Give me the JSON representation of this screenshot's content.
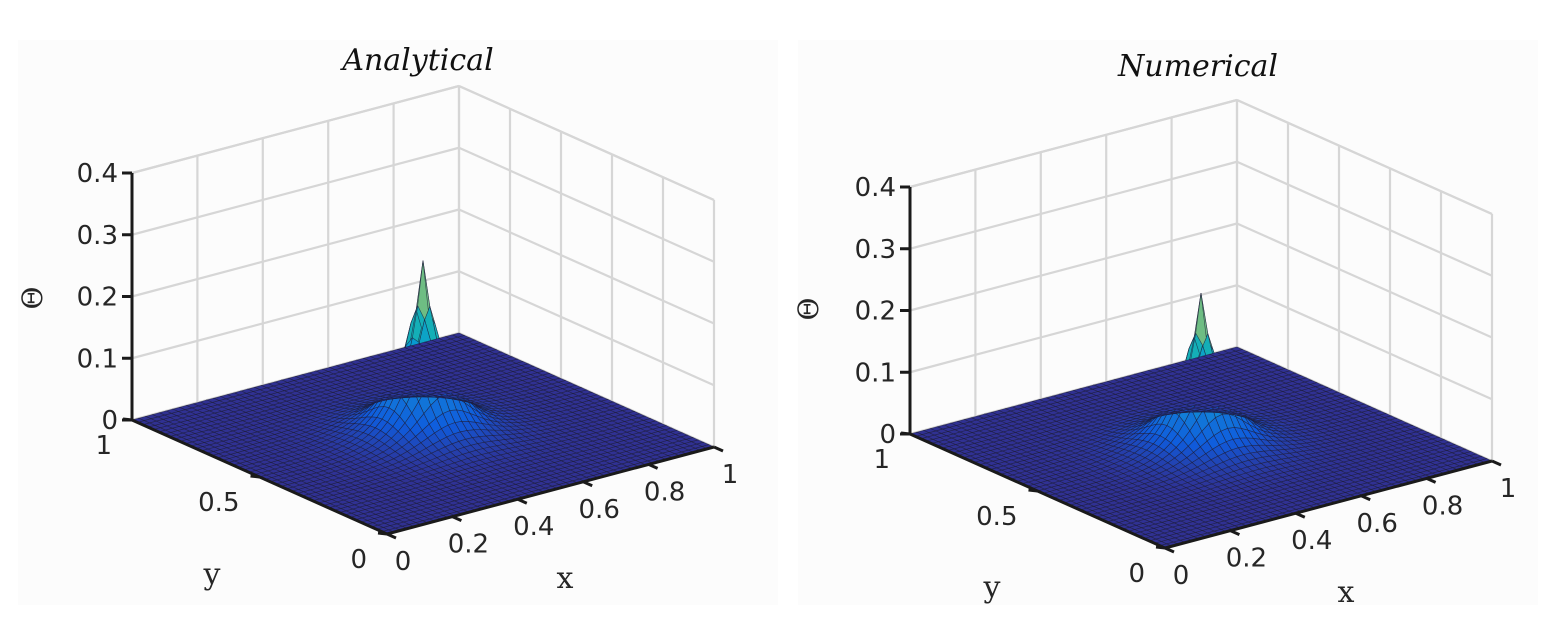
{
  "chart_data": [
    {
      "type": "surface",
      "title": "Analytical",
      "xlabel": "x",
      "ylabel": "y",
      "zlabel": "Θ",
      "xlim": [
        0,
        1
      ],
      "ylim": [
        0,
        1
      ],
      "zlim": [
        0,
        0.4
      ],
      "x_ticks": [
        "0",
        "0.2",
        "0.4",
        "0.6",
        "0.8",
        "1"
      ],
      "y_ticks": [
        "0",
        "0.5",
        "1"
      ],
      "z_ticks": [
        "0",
        "0.1",
        "0.2",
        "0.3",
        "0.4"
      ],
      "peak": {
        "x": 0.5,
        "y": 0.5,
        "z": 0.28
      },
      "grid": true,
      "colormap": "parula"
    },
    {
      "type": "surface",
      "title": "Numerical",
      "xlabel": "x",
      "ylabel": "y",
      "zlabel": "Θ",
      "xlim": [
        0,
        1
      ],
      "ylim": [
        0,
        1
      ],
      "zlim": [
        0,
        0.4
      ],
      "x_ticks": [
        "0",
        "0.2",
        "0.4",
        "0.6",
        "0.8",
        "1"
      ],
      "y_ticks": [
        "0",
        "0.5",
        "1"
      ],
      "z_ticks": [
        "0",
        "0.1",
        "0.2",
        "0.3",
        "0.4"
      ],
      "peak": {
        "x": 0.5,
        "y": 0.5,
        "z": 0.25
      },
      "grid": true,
      "colormap": "parula"
    }
  ],
  "colors": {
    "base": "#2d1a8a",
    "mesh": "#1c1c3a",
    "peak": "#f9fb0e"
  }
}
